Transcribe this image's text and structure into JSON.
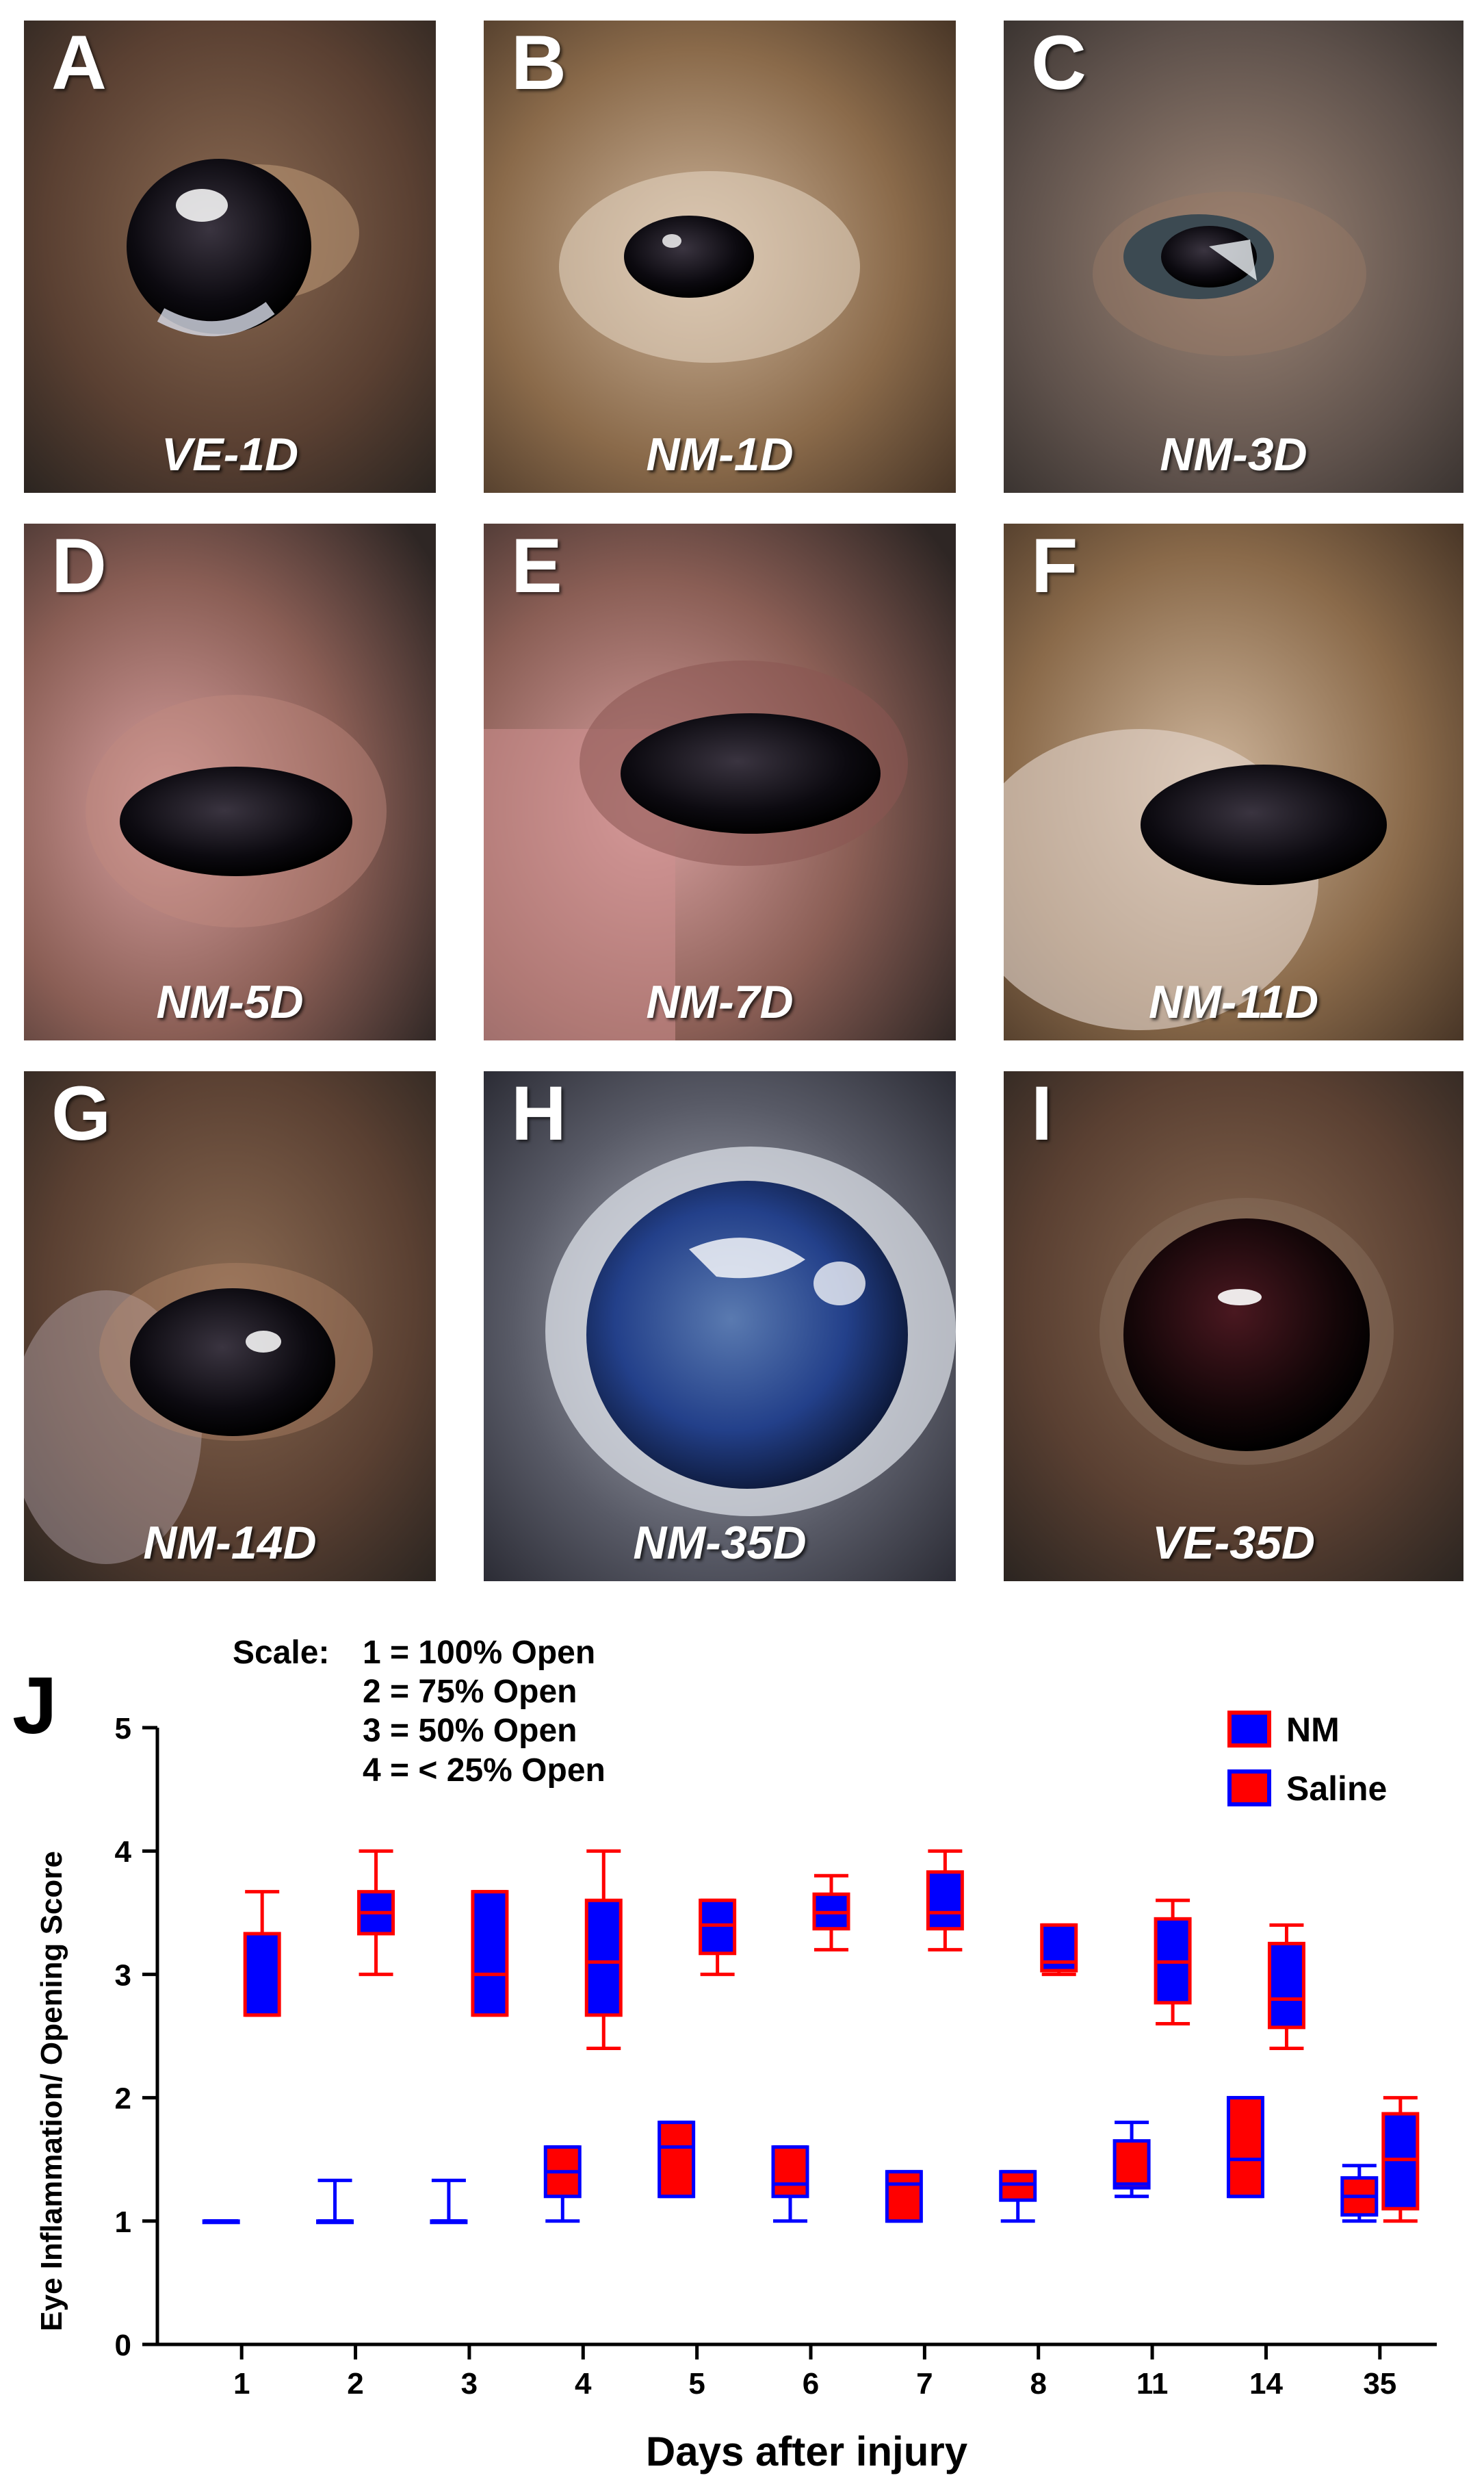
{
  "panels": [
    {
      "letter": "A",
      "caption": "VE-1D"
    },
    {
      "letter": "B",
      "caption": "NM-1D"
    },
    {
      "letter": "C",
      "caption": "NM-3D"
    },
    {
      "letter": "D",
      "caption": "NM-5D"
    },
    {
      "letter": "E",
      "caption": "NM-7D"
    },
    {
      "letter": "F",
      "caption": "NM-11D"
    },
    {
      "letter": "G",
      "caption": "NM-14D"
    },
    {
      "letter": "H",
      "caption": "NM-35D"
    },
    {
      "letter": "I",
      "caption": "VE-35D"
    }
  ],
  "chart_data": {
    "type": "box",
    "panel_label": "J",
    "title": "",
    "xlabel": "Days after injury",
    "ylabel": "Eye Inflammation/ Opening Score",
    "ylim": [
      0,
      5
    ],
    "yticks": [
      0,
      1,
      2,
      3,
      4,
      5
    ],
    "categories": [
      "1",
      "2",
      "3",
      "4",
      "5",
      "6",
      "7",
      "8",
      "11",
      "14",
      "35"
    ],
    "scale_note": {
      "label": "Scale:",
      "lines": [
        "1 = 100% Open",
        "2 = 75% Open",
        "3 = 50% Open",
        "4 = < 25% Open"
      ]
    },
    "legend_position": "top-right",
    "series": [
      {
        "name": "NM",
        "fill": "#0000ff",
        "edge": "#ff0000",
        "boxes": [
          {
            "min": 2.67,
            "q1": 2.67,
            "median": 2.67,
            "q3": 3.33,
            "max": 3.67
          },
          {
            "min": 3.0,
            "q1": 3.33,
            "median": 3.5,
            "q3": 3.67,
            "max": 4.0
          },
          {
            "min": 2.67,
            "q1": 2.67,
            "median": 3.0,
            "q3": 3.67,
            "max": 3.67
          },
          {
            "min": 2.4,
            "q1": 2.67,
            "median": 3.1,
            "q3": 3.6,
            "max": 4.0
          },
          {
            "min": 3.0,
            "q1": 3.17,
            "median": 3.4,
            "q3": 3.6,
            "max": 3.6
          },
          {
            "min": 3.2,
            "q1": 3.37,
            "median": 3.5,
            "q3": 3.65,
            "max": 3.8
          },
          {
            "min": 3.2,
            "q1": 3.37,
            "median": 3.5,
            "q3": 3.83,
            "max": 4.0
          },
          {
            "min": 3.0,
            "q1": 3.03,
            "median": 3.1,
            "q3": 3.4,
            "max": 3.4
          },
          {
            "min": 2.6,
            "q1": 2.77,
            "median": 3.1,
            "q3": 3.45,
            "max": 3.6
          },
          {
            "min": 2.4,
            "q1": 2.57,
            "median": 2.8,
            "q3": 3.25,
            "max": 3.4
          },
          {
            "min": 1.0,
            "q1": 1.1,
            "median": 1.5,
            "q3": 1.87,
            "max": 2.0
          }
        ]
      },
      {
        "name": "Saline",
        "fill": "#ff0000",
        "edge": "#0000ff",
        "boxes": [
          {
            "min": 1.0,
            "q1": 1.0,
            "median": 1.0,
            "q3": 1.0,
            "max": 1.0
          },
          {
            "min": 1.0,
            "q1": 1.0,
            "median": 1.0,
            "q3": 1.0,
            "max": 1.33
          },
          {
            "min": 1.0,
            "q1": 1.0,
            "median": 1.0,
            "q3": 1.0,
            "max": 1.33
          },
          {
            "min": 1.0,
            "q1": 1.2,
            "median": 1.4,
            "q3": 1.6,
            "max": 1.6
          },
          {
            "min": 1.2,
            "q1": 1.2,
            "median": 1.6,
            "q3": 1.8,
            "max": 1.8
          },
          {
            "min": 1.0,
            "q1": 1.2,
            "median": 1.3,
            "q3": 1.6,
            "max": 1.6
          },
          {
            "min": 1.0,
            "q1": 1.0,
            "median": 1.3,
            "q3": 1.4,
            "max": 1.4
          },
          {
            "min": 1.0,
            "q1": 1.17,
            "median": 1.3,
            "q3": 1.4,
            "max": 1.4
          },
          {
            "min": 1.2,
            "q1": 1.27,
            "median": 1.3,
            "q3": 1.65,
            "max": 1.8
          },
          {
            "min": 1.2,
            "q1": 1.2,
            "median": 1.5,
            "q3": 2.0,
            "max": 2.0
          },
          {
            "min": 1.0,
            "q1": 1.05,
            "median": 1.2,
            "q3": 1.35,
            "max": 1.45
          }
        ]
      }
    ]
  }
}
